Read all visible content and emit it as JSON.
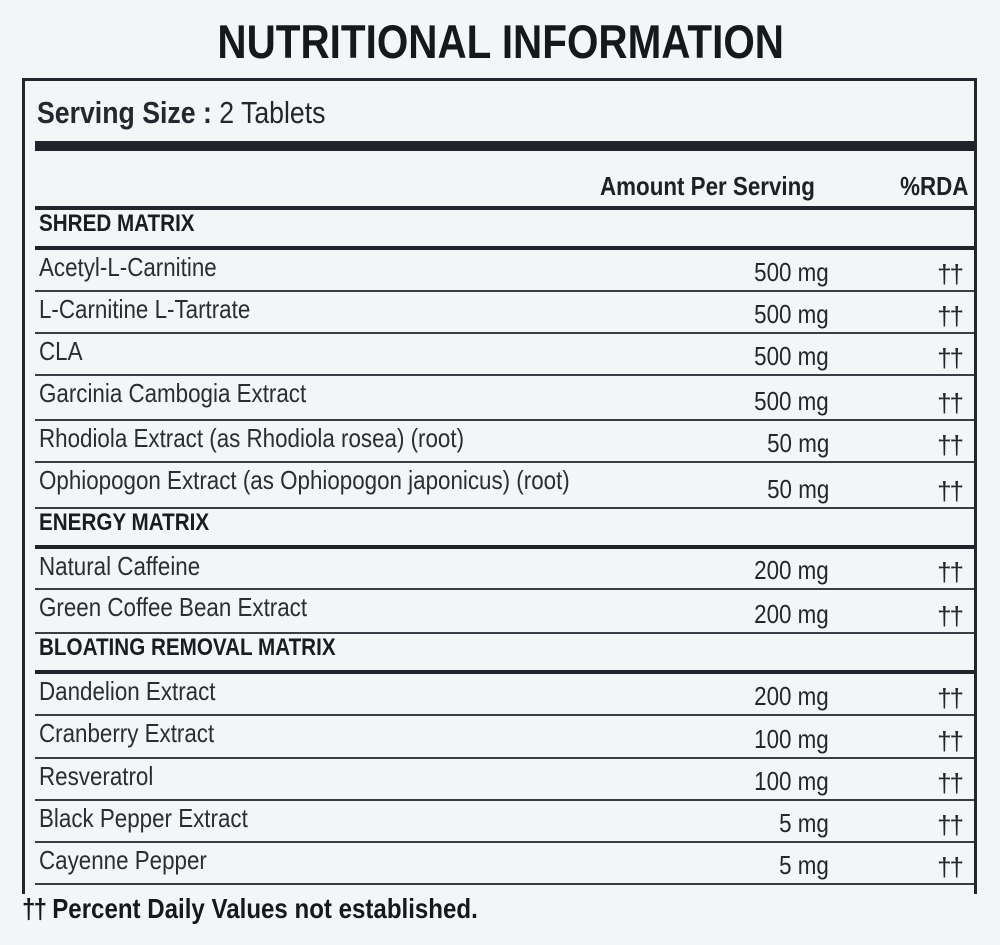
{
  "title": "NUTRITIONAL INFORMATION",
  "serving": {
    "label": "Serving Size :",
    "value": "2 Tablets"
  },
  "columns": {
    "amount": "Amount Per Serving",
    "rda": "%RDA"
  },
  "sections": [
    {
      "name": "SHRED MATRIX",
      "items": [
        {
          "name": "Acetyl-L-Carnitine",
          "amount": "500 mg",
          "rda": "††"
        },
        {
          "name": "L-Carnitine L-Tartrate",
          "amount": "500 mg",
          "rda": "††"
        },
        {
          "name": "CLA",
          "amount": "500 mg",
          "rda": "††"
        },
        {
          "name": "Garcinia Cambogia Extract",
          "amount": "500 mg",
          "rda": "††"
        },
        {
          "name": "Rhodiola Extract (as Rhodiola rosea) (root)",
          "amount": "50 mg",
          "rda": "††"
        },
        {
          "name": "Ophiopogon Extract (as Ophiopogon japonicus) (root)",
          "amount": "50 mg",
          "rda": "††"
        }
      ]
    },
    {
      "name": "ENERGY MATRIX",
      "items": [
        {
          "name": "Natural Caffeine",
          "amount": "200 mg",
          "rda": "††"
        },
        {
          "name": "Green Coffee Bean Extract",
          "amount": "200 mg",
          "rda": "††"
        }
      ]
    },
    {
      "name": "BLOATING REMOVAL MATRIX",
      "items": [
        {
          "name": "Dandelion Extract",
          "amount": "200 mg",
          "rda": "††"
        },
        {
          "name": "Cranberry Extract",
          "amount": "100 mg",
          "rda": "††"
        },
        {
          "name": "Resveratrol",
          "amount": "100 mg",
          "rda": "††"
        },
        {
          "name": "Black Pepper Extract",
          "amount": "5 mg",
          "rda": "††"
        },
        {
          "name": "Cayenne Pepper",
          "amount": "5 mg",
          "rda": "††"
        }
      ]
    }
  ],
  "footnote": {
    "symbol": "††",
    "text": "Percent Daily Values not established."
  }
}
